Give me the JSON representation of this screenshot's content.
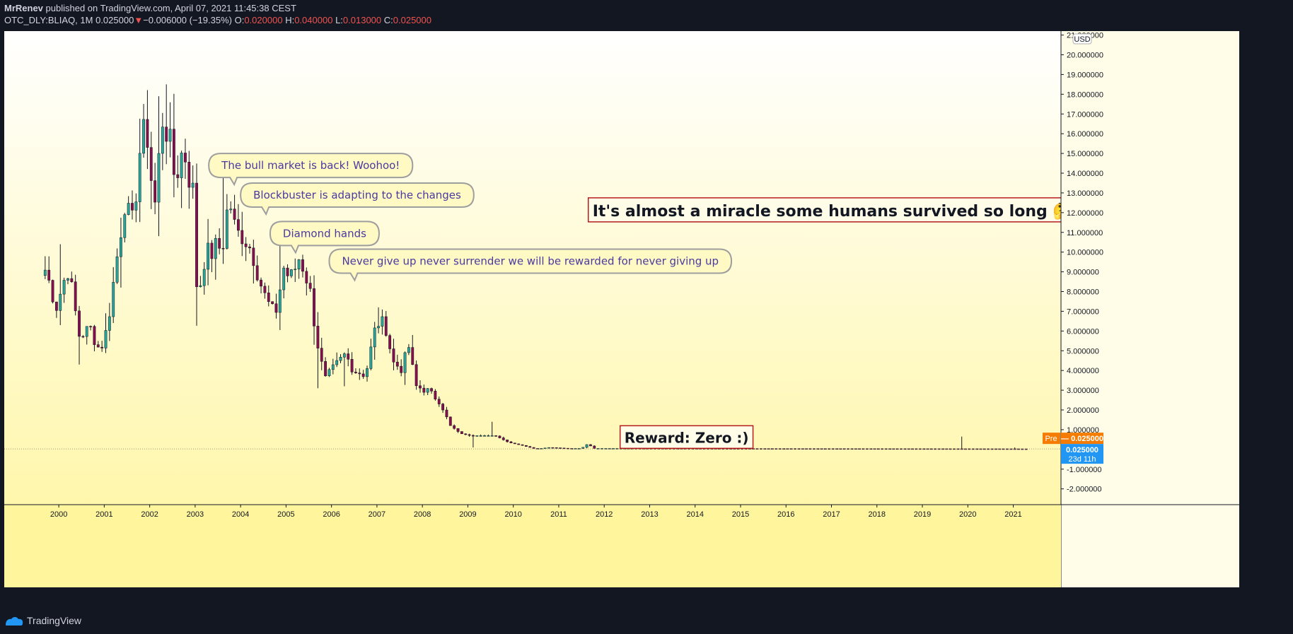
{
  "header": {
    "author": "MrRenev",
    "published": " published on TradingView.com, April 07, 2021 11:45:38 CEST",
    "symbol": "OTC_DLY:BLIAQ, 1M",
    "last": "0.025000",
    "change": "−0.006000 (−19.35%)",
    "o_label": "O:",
    "o_value": "0.020000",
    "h_label": "H:",
    "h_value": "0.040000",
    "l_label": "L:",
    "l_value": "0.013000",
    "c_label": "C:",
    "c_value": "0.025000"
  },
  "footer": {
    "brand": "TradingView"
  },
  "colors": {
    "up": "#26a69a",
    "down": "#880e4f",
    "wick": "#131722",
    "bg_top": "#ffffff",
    "bg_bottom": "#fff59d",
    "bubble_fill": "#fff9c4",
    "bubble_border": "#9e9e9e",
    "note_border": "#b71c1c",
    "pre_label": "#f57c00",
    "last_label": "#2196f3"
  },
  "chart_data": {
    "type": "candlestick",
    "interval": "1M",
    "currency": "USD",
    "y_range": [
      -2.8,
      21.2
    ],
    "y_ticks": [
      21,
      20,
      19,
      18,
      17,
      16,
      15,
      14,
      13,
      12,
      11,
      10,
      9,
      8,
      7,
      6,
      5,
      4,
      3,
      2,
      1,
      0,
      -1,
      -2
    ],
    "y_tick_labels": [
      "21.000000",
      "20.000000",
      "19.000000",
      "18.000000",
      "17.000000",
      "16.000000",
      "15.000000",
      "14.000000",
      "13.000000",
      "12.000000",
      "11.000000",
      "10.000000",
      "9.000000",
      "8.000000",
      "7.000000",
      "6.000000",
      "5.000000",
      "4.000000",
      "3.000000",
      "2.000000",
      "1.000000",
      "0.025000",
      "-1.000000",
      "-2.000000"
    ],
    "x_range": [
      1998.8,
      2022.05
    ],
    "x_ticks": [
      "2000",
      "2001",
      "2002",
      "2003",
      "2004",
      "2005",
      "2006",
      "2007",
      "2008",
      "2009",
      "2010",
      "2011",
      "2012",
      "2013",
      "2014",
      "2015",
      "2016",
      "2017",
      "2018",
      "2019",
      "2020",
      "2021"
    ],
    "anchors": [
      [
        1999.7,
        9.1
      ],
      [
        1999.95,
        7.3
      ],
      [
        2000.2,
        9.2
      ],
      [
        2000.45,
        5.8
      ],
      [
        2000.7,
        6.1
      ],
      [
        2000.9,
        5.0
      ],
      [
        2001.05,
        6.0
      ],
      [
        2001.25,
        9.2
      ],
      [
        2001.45,
        12.7
      ],
      [
        2001.6,
        11.0
      ],
      [
        2001.8,
        15.5
      ],
      [
        2001.95,
        16.0
      ],
      [
        2002.1,
        12.0
      ],
      [
        2002.3,
        17.3
      ],
      [
        2002.55,
        13.8
      ],
      [
        2002.75,
        15.3
      ],
      [
        2002.95,
        13.0
      ],
      [
        2003.05,
        7.5
      ],
      [
        2003.2,
        9.7
      ],
      [
        2003.4,
        10.1
      ],
      [
        2003.6,
        10.3
      ],
      [
        2003.75,
        12.8
      ],
      [
        2003.9,
        10.8
      ],
      [
        2004.05,
        11.0
      ],
      [
        2004.3,
        9.8
      ],
      [
        2004.5,
        7.9
      ],
      [
        2004.75,
        6.7
      ],
      [
        2004.95,
        9.2
      ],
      [
        2005.1,
        8.6
      ],
      [
        2005.3,
        9.8
      ],
      [
        2005.5,
        8.4
      ],
      [
        2005.7,
        5.3
      ],
      [
        2005.85,
        3.5
      ],
      [
        2006.05,
        4.1
      ],
      [
        2006.3,
        4.8
      ],
      [
        2006.5,
        4.0
      ],
      [
        2006.75,
        3.8
      ],
      [
        2007.0,
        6.5
      ],
      [
        2007.2,
        6.2
      ],
      [
        2007.35,
        4.4
      ],
      [
        2007.55,
        4.1
      ],
      [
        2007.7,
        5.2
      ],
      [
        2007.85,
        3.2
      ],
      [
        2008.1,
        3.0
      ],
      [
        2008.4,
        2.4
      ],
      [
        2008.6,
        1.2
      ],
      [
        2008.85,
        0.8
      ],
      [
        2009.05,
        0.7
      ],
      [
        2009.35,
        0.7
      ],
      [
        2009.6,
        0.7
      ],
      [
        2009.9,
        0.35
      ],
      [
        2010.2,
        0.2
      ],
      [
        2010.5,
        0.02
      ],
      [
        2010.8,
        0.1
      ],
      [
        2011.2,
        0.05
      ],
      [
        2011.5,
        0.05
      ],
      [
        2011.65,
        0.3
      ],
      [
        2011.75,
        0.05
      ],
      [
        2012.5,
        0.05
      ],
      [
        2021.0,
        0.03
      ],
      [
        2021.3,
        0.025
      ]
    ],
    "spikes": [
      [
        2000.0,
        10.4
      ],
      [
        2000.45,
        4.3
      ],
      [
        2001.0,
        6.9
      ],
      [
        2001.35,
        8.2
      ],
      [
        2002.2,
        17.9
      ],
      [
        2002.35,
        18.5
      ],
      [
        2002.6,
        14.9
      ],
      [
        2003.45,
        8.6
      ],
      [
        2003.65,
        14.0
      ],
      [
        2004.9,
        10.6
      ],
      [
        2005.7,
        3.1
      ],
      [
        2006.3,
        3.2
      ],
      [
        2007.05,
        7.2
      ],
      [
        2007.8,
        5.8
      ],
      [
        2009.1,
        0.1
      ],
      [
        2009.55,
        1.4
      ],
      [
        2012.7,
        0.3
      ],
      [
        2019.9,
        0.65
      ],
      [
        2021.05,
        0.1
      ]
    ],
    "last_price": 0.025,
    "pre_label": "Pre",
    "price_labels": [
      "0.025000",
      "0.025000"
    ],
    "countdown": "23d 11h",
    "currency_badge": "USD",
    "annotations": {
      "bubbles": [
        {
          "text": "The bull market is back! Woohoo!",
          "x": 2003.3,
          "y": 15.0
        },
        {
          "text": "Blockbuster is adapting to the changes",
          "x": 2004.0,
          "y": 13.5
        },
        {
          "text": "Diamond hands",
          "x": 2004.65,
          "y": 11.55
        },
        {
          "text": "Never give up never surrender we will be rewarded for never giving up",
          "x": 2005.95,
          "y": 10.15
        }
      ],
      "notes": [
        {
          "text": "It's almost a miracle some humans survived so long",
          "emoji": "🤔",
          "x": 2011.65,
          "y": 12.75,
          "size": "large"
        },
        {
          "text": "Reward: Zero :)",
          "x": 2012.35,
          "y": 1.2,
          "size": "medium"
        }
      ]
    }
  }
}
